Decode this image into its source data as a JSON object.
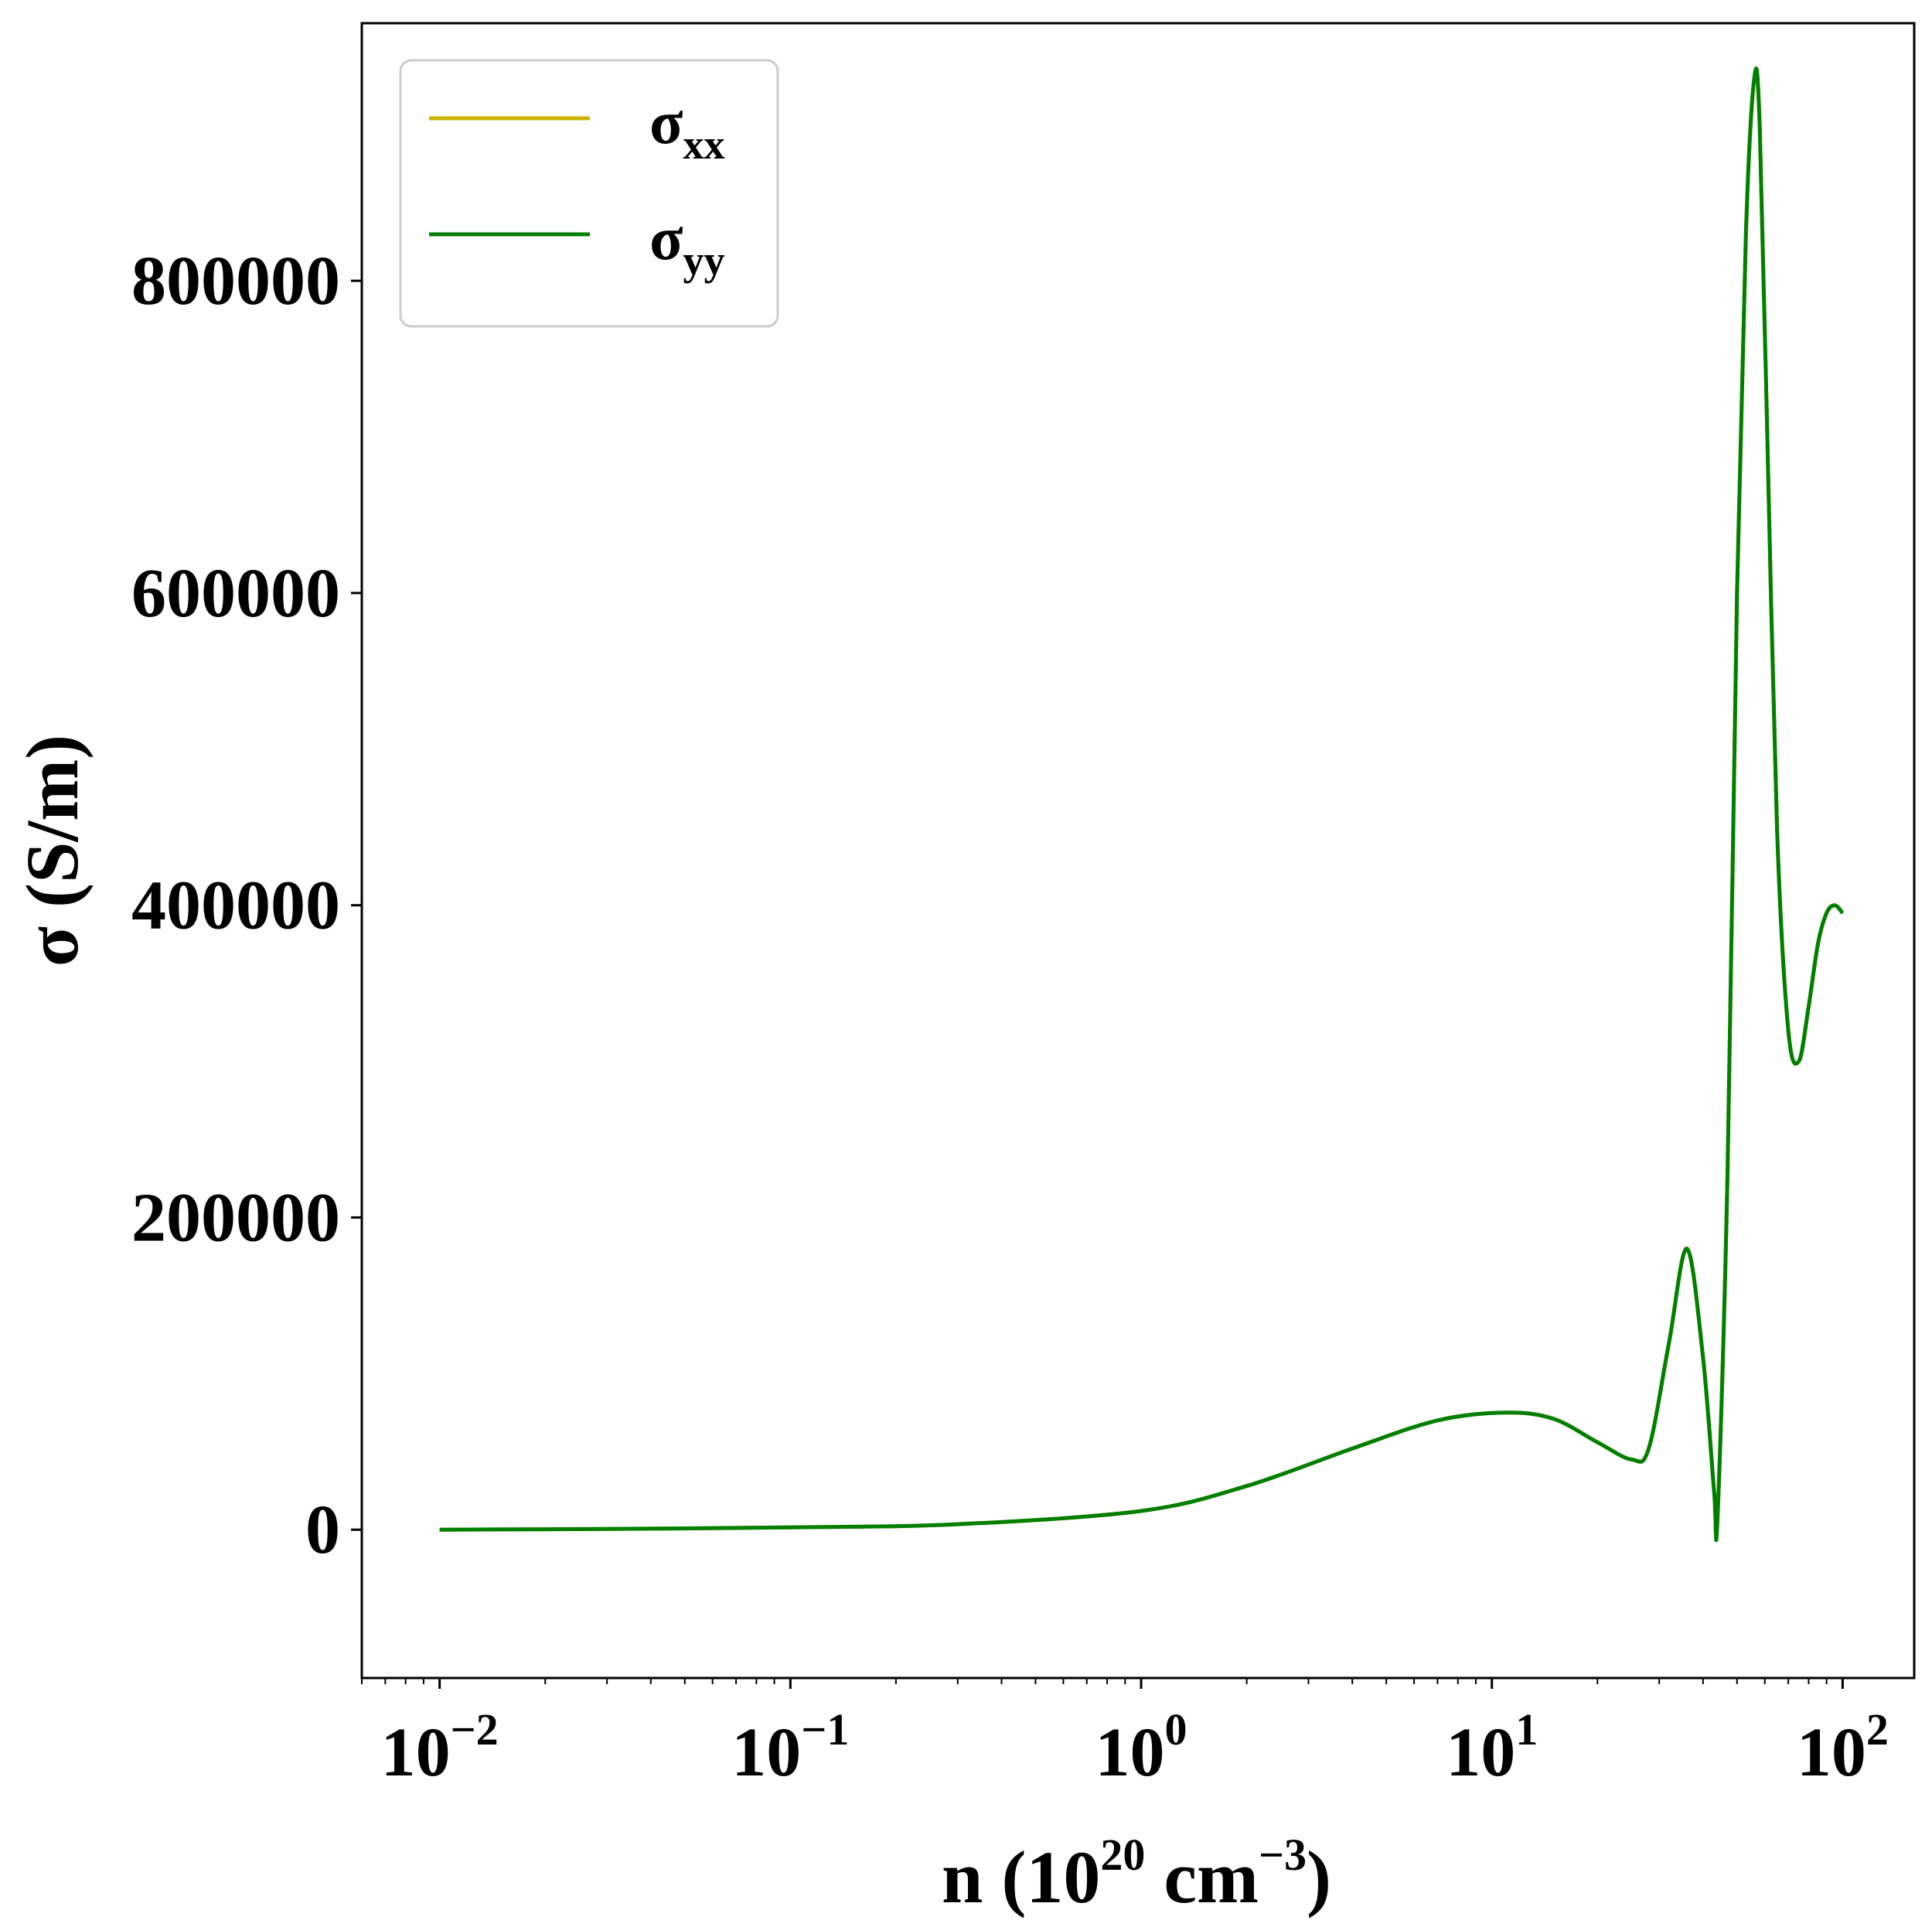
{
  "chart_data": {
    "type": "line",
    "x_scale": "log",
    "xlim": [
      0.006,
      160
    ],
    "ylim": [
      -95000,
      965000
    ],
    "grid": false,
    "legend_position": "top-left",
    "xlabel": {
      "base": "n (10",
      "sup1": "20",
      "mid": " cm",
      "sup2": "−3",
      "end": ")"
    },
    "ylabel": "σ (S/m)",
    "y_ticks": [
      {
        "value": 0,
        "label": "0"
      },
      {
        "value": 200000,
        "label": "200000"
      },
      {
        "value": 400000,
        "label": "400000"
      },
      {
        "value": 600000,
        "label": "600000"
      },
      {
        "value": 800000,
        "label": "800000"
      }
    ],
    "x_ticks": [
      {
        "value": 0.01,
        "base": "10",
        "exp": "−2"
      },
      {
        "value": 0.1,
        "base": "10",
        "exp": "−1"
      },
      {
        "value": 1,
        "base": "10",
        "exp": "0"
      },
      {
        "value": 10,
        "base": "10",
        "exp": "1"
      },
      {
        "value": 100,
        "base": "10",
        "exp": "2"
      }
    ],
    "series": [
      {
        "name": "σxx",
        "label_main": "σ",
        "label_sub": "xx",
        "color": "#c8b400",
        "x": [
          0.01,
          0.03,
          0.1,
          0.3,
          1,
          2,
          4,
          7,
          11,
          15,
          20,
          25,
          28,
          32,
          36,
          40,
          43,
          44,
          47,
          50,
          53,
          56,
          58,
          61,
          65,
          70,
          75,
          80,
          85,
          90,
          95,
          100
        ],
        "y": [
          0,
          500,
          1500,
          3500,
          12000,
          28000,
          52000,
          70000,
          75000,
          71000,
          56000,
          45000,
          52000,
          120000,
          180000,
          110000,
          25000,
          8000,
          230000,
          600000,
          830000,
          930000,
          900000,
          700000,
          450000,
          320000,
          300000,
          335000,
          375000,
          395000,
          400000,
          395000
        ]
      },
      {
        "name": "σyy",
        "label_main": "σ",
        "label_sub": "yy",
        "color": "#007f00",
        "x": [
          0.01,
          0.03,
          0.1,
          0.3,
          1,
          2,
          4,
          7,
          11,
          15,
          20,
          25,
          28,
          32,
          36,
          40,
          43,
          44,
          47,
          50,
          53,
          56,
          58,
          61,
          65,
          70,
          75,
          80,
          85,
          90,
          95,
          100
        ],
        "y": [
          0,
          500,
          1500,
          3500,
          12000,
          28000,
          52000,
          70000,
          75000,
          71000,
          56000,
          45000,
          52000,
          120000,
          180000,
          110000,
          25000,
          8000,
          230000,
          600000,
          830000,
          930000,
          900000,
          700000,
          450000,
          320000,
          300000,
          335000,
          375000,
          395000,
          400000,
          395000
        ]
      }
    ]
  }
}
